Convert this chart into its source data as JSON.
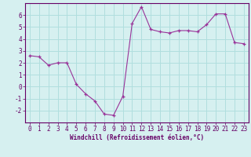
{
  "x": [
    0,
    1,
    2,
    3,
    4,
    5,
    6,
    7,
    8,
    9,
    10,
    11,
    12,
    13,
    14,
    15,
    16,
    17,
    18,
    19,
    20,
    21,
    22,
    23
  ],
  "y": [
    2.6,
    2.5,
    1.8,
    2.0,
    2.0,
    0.2,
    -0.6,
    -1.2,
    -2.3,
    -2.4,
    -0.8,
    5.3,
    6.7,
    4.8,
    4.6,
    4.5,
    4.7,
    4.7,
    4.6,
    5.2,
    6.1,
    6.1,
    3.7,
    3.6
  ],
  "line_color": "#993399",
  "marker": "+",
  "marker_color": "#993399",
  "bg_color": "#d6f0f0",
  "grid_color": "#b0dede",
  "xlabel": "Windchill (Refroidissement éolien,°C)",
  "xlabel_color": "#660066",
  "tick_color": "#660066",
  "axis_color": "#660066",
  "xlim": [
    -0.5,
    23.5
  ],
  "ylim": [
    -3,
    7
  ],
  "yticks": [
    -2,
    -1,
    0,
    1,
    2,
    3,
    4,
    5,
    6
  ],
  "xticks": [
    0,
    1,
    2,
    3,
    4,
    5,
    6,
    7,
    8,
    9,
    10,
    11,
    12,
    13,
    14,
    15,
    16,
    17,
    18,
    19,
    20,
    21,
    22,
    23
  ],
  "tick_fontsize": 5.5,
  "xlabel_fontsize": 5.5
}
